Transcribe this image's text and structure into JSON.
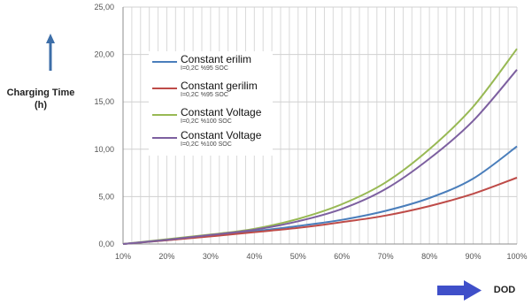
{
  "chart_data": {
    "type": "line",
    "x": [
      "10%",
      "20%",
      "30%",
      "40%",
      "50%",
      "60%",
      "70%",
      "80%",
      "90%",
      "100%"
    ],
    "xvalues": [
      10,
      20,
      30,
      40,
      50,
      60,
      70,
      80,
      90,
      100
    ],
    "xlim": [
      10,
      100
    ],
    "ylim": [
      0,
      25
    ],
    "yticks": [
      "0,00",
      "5,00",
      "10,00",
      "15,00",
      "20,00",
      "25,00"
    ],
    "ytick_values": [
      0,
      5,
      10,
      15,
      20,
      25
    ],
    "xlabel": "DOD",
    "ylabel": "Charging Time (h)",
    "grid": "vertical minor + horizontal major",
    "legend_position": "upper-left",
    "series": [
      {
        "name": "Constant erilim",
        "sub": "I=0,2C %95 SOC",
        "color": "#4a7ebb",
        "values": [
          0.0,
          0.4,
          0.85,
          1.35,
          1.9,
          2.55,
          3.5,
          4.85,
          6.9,
          10.3
        ]
      },
      {
        "name": "Constant gerilim",
        "sub": "I=0,2C %95 SOC",
        "color": "#be4b48",
        "values": [
          0.0,
          0.4,
          0.8,
          1.25,
          1.7,
          2.3,
          3.0,
          4.0,
          5.3,
          7.0
        ]
      },
      {
        "name": "Constant Voltage",
        "sub": "I=0,2C %100 SOC",
        "color": "#98b954",
        "values": [
          0.0,
          0.5,
          1.0,
          1.6,
          2.65,
          4.2,
          6.5,
          10.0,
          14.5,
          20.6
        ]
      },
      {
        "name": "Constant Voltage",
        "sub": "I=0,2C %100 SOC",
        "color": "#7d60a0",
        "values": [
          0.0,
          0.45,
          0.95,
          1.5,
          2.4,
          3.7,
          5.8,
          9.0,
          13.0,
          18.4
        ]
      }
    ]
  },
  "arrow_colors": {
    "up": "#3d6ea8",
    "right": "#3f4fc9"
  }
}
